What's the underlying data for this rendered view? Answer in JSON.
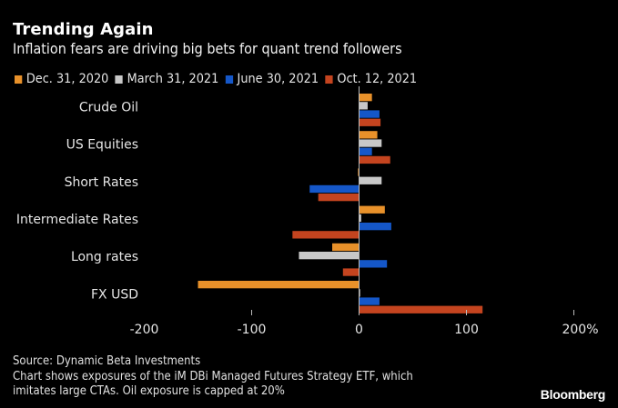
{
  "header": {
    "title": "Trending Again",
    "subtitle": "Inflation fears are driving big bets for quant trend followers"
  },
  "footer": {
    "source": "Source: Dynamic Beta Investments",
    "note_line1": "Chart shows exposures of the iM DBi Managed Futures Strategy ETF, which",
    "note_line2": "imitates large CTAs. Oil exposure is capped at 20%",
    "brand": "Bloomberg"
  },
  "chart_data": {
    "type": "bar",
    "orientation": "horizontal",
    "title": "Trending Again",
    "subtitle": "Inflation fears are driving big bets for quant trend followers",
    "xlabel": "",
    "ylabel": "",
    "unit": "%",
    "categories": [
      "Crude Oil",
      "US Equities",
      "Short Rates",
      "Intermediate Rates",
      "Long rates",
      "FX USD"
    ],
    "series": [
      {
        "name": "Dec. 31, 2020",
        "color": "#E8912A",
        "values": [
          12,
          17,
          -1,
          24,
          -25,
          -150
        ]
      },
      {
        "name": "March 31, 2021",
        "color": "#C8C8C8",
        "values": [
          8,
          21,
          21,
          2,
          -56,
          1
        ]
      },
      {
        "name": "June 30, 2021",
        "color": "#1557C8",
        "values": [
          19,
          12,
          -46,
          30,
          26,
          19
        ]
      },
      {
        "name": "Oct. 12, 2021",
        "color": "#C4441F",
        "values": [
          20,
          29,
          -38,
          -62,
          -15,
          115
        ]
      }
    ],
    "xlim": [
      -200,
      200
    ],
    "xticks": [
      -200,
      -100,
      0,
      100,
      200
    ],
    "xtick_labels": [
      "-200",
      "-100",
      "0",
      "100",
      "200%"
    ],
    "legend_position": "top-left",
    "grid": false
  }
}
